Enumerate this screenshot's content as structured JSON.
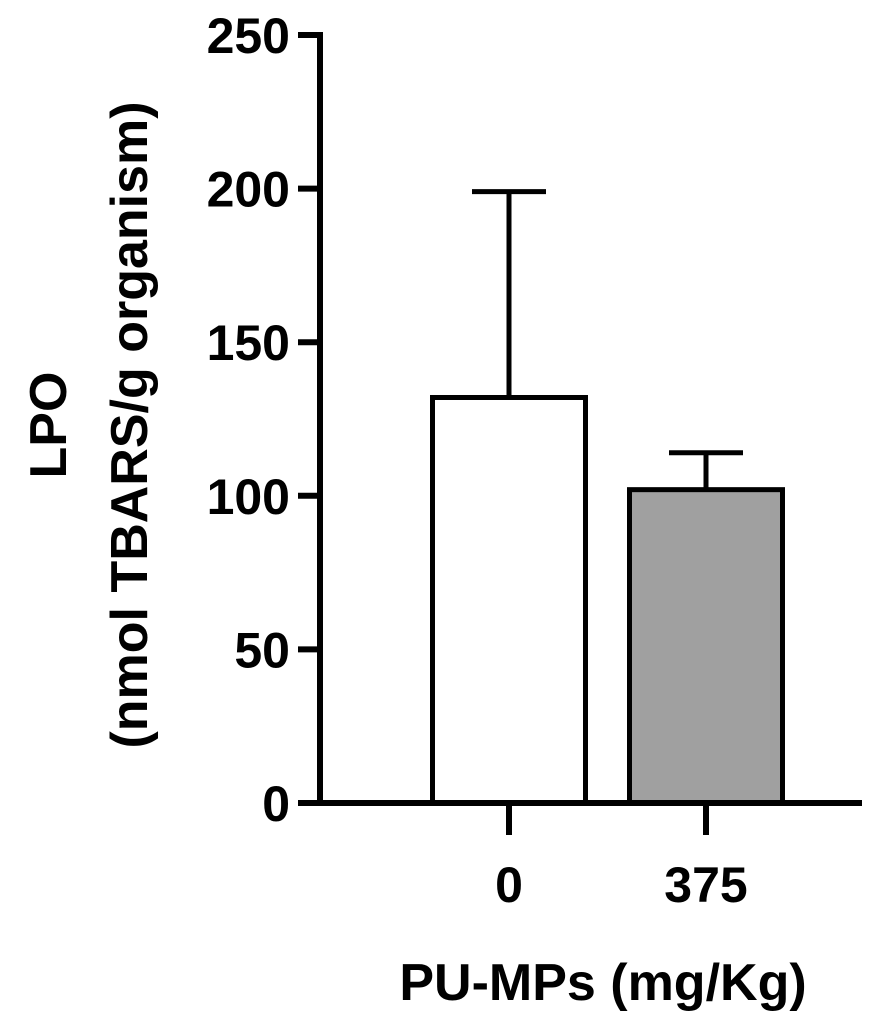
{
  "chart_data": {
    "type": "bar",
    "categories": [
      "0",
      "375"
    ],
    "values": [
      132,
      102
    ],
    "errors": [
      67,
      12
    ],
    "xlabel": "PU-MPs (mg/Kg)",
    "ylabel_line1": "LPO",
    "ylabel_line2": "(nmol TBARS/g organism)",
    "ylim": [
      0,
      250
    ],
    "yticks": [
      "0",
      "50",
      "100",
      "150",
      "200",
      "250"
    ],
    "grid": false,
    "legend": "none",
    "bar_colors": [
      "#ffffff",
      "#a0a0a0"
    ],
    "edge_color": "#000000"
  }
}
